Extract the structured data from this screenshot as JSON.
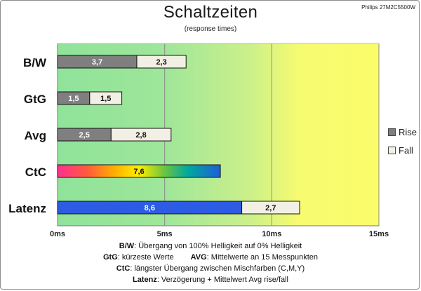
{
  "corner_label": "Philips 27M2C5500W",
  "colors": {
    "rise": "#7f7f7f",
    "fall": "#f2efe4",
    "latency_rise": "#2d5be3",
    "border": "#111111",
    "bg_green": "#8fe39a",
    "bg_yellow": "#fafc6a"
  },
  "chart_data": {
    "type": "bar",
    "orientation": "horizontal",
    "stacked": true,
    "title": "Schaltzeiten",
    "subtitle": "(response times)",
    "categories": [
      "B/W",
      "GtG",
      "Avg",
      "CtC",
      "Latenz"
    ],
    "series": [
      {
        "name": "Rise",
        "values": [
          3.7,
          1.5,
          2.5,
          7.6,
          8.6
        ]
      },
      {
        "name": "Fall",
        "values": [
          2.3,
          1.5,
          2.8,
          null,
          2.7
        ]
      }
    ],
    "special_fills": {
      "CtC": "rainbow",
      "Latenz": "blue"
    },
    "xlim": [
      0,
      15
    ],
    "xticks": [
      0,
      5,
      10,
      15
    ],
    "xtick_labels": [
      "0ms",
      "5ms",
      "10ms",
      "15ms"
    ],
    "grid": true,
    "legend_position": "right"
  },
  "notes": {
    "line1_key": "B/W",
    "line1_text": ":  Übergang von 100% Helligkeit auf 0% Helligkeit",
    "line2a_key": "GtG",
    "line2a_text": ": kürzeste  Werte",
    "line2b_key": "AVG",
    "line2b_text": ": Mittelwerte  an 15 Messpunkten",
    "line3_key": "CtC",
    "line3_text": ": längster Übergang  zwischen Mischfarben  (C,M,Y)",
    "line4_key": "Latenz",
    "line4_text": ": Verzögerung  + Mittelwert  Avg rise/fall"
  }
}
